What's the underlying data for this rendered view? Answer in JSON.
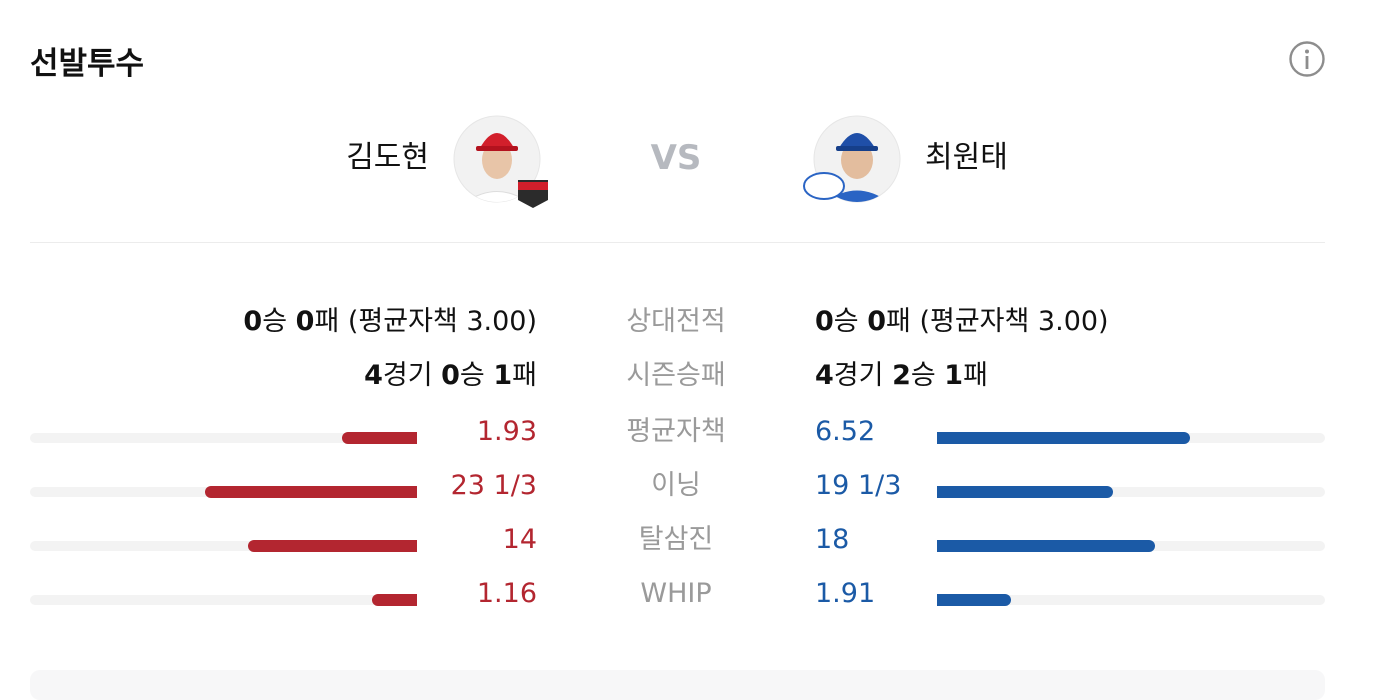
{
  "header": {
    "title": "선발투수"
  },
  "matchup": {
    "home": "김도현",
    "vs": "VS",
    "away": "최원태"
  },
  "records": [
    {
      "label": "상대전적",
      "left": "0승 0패 (평균자책 3.00)",
      "right": "0승 0패 (평균자책 3.00)"
    },
    {
      "label": "시즌승패",
      "left": "4경기 0승 1패",
      "right": "4경기 2승 1패"
    }
  ],
  "stats": [
    {
      "label": "평균자책",
      "xlim": [
        0,
        10
      ],
      "left": 1.93,
      "right": 6.52
    },
    {
      "label": "이닝",
      "left": {
        "value": 23.333,
        "label": "23 1/3"
      },
      "right": {
        "value": 19.333,
        "label": "19 1/3"
      }
    },
    {
      "label": "탈삼진",
      "left": 14,
      "right": 18
    },
    {
      "label": "WHIP",
      "xlim": [
        0,
        10
      ],
      "left": 1.16,
      "right": 1.91
    }
  ]
}
